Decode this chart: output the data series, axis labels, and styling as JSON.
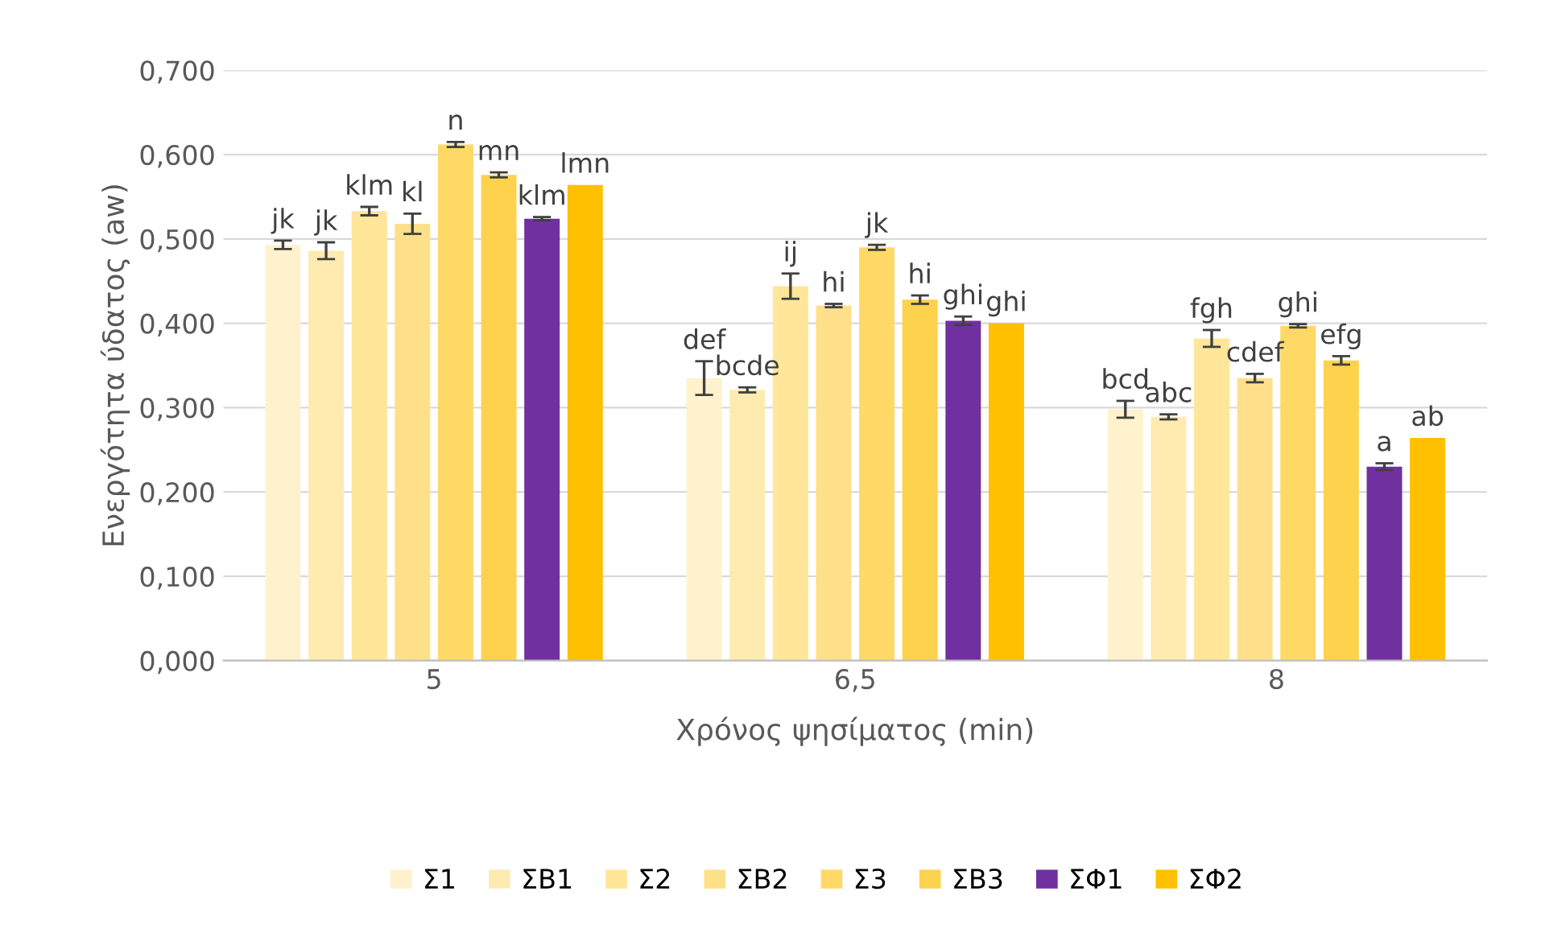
{
  "chart_data": {
    "type": "bar",
    "xlabel": "Χρόνος ψησίματος (min)",
    "ylabel": "Ενεργότητα ύδατος (aw)",
    "categories": [
      "5",
      "6,5",
      "8"
    ],
    "series": [
      {
        "name": "Σ1",
        "color": "#fff2cc",
        "values": [
          0.493,
          0.335,
          0.298
        ],
        "errors": [
          0.005,
          0.02,
          0.01
        ],
        "value_labels": [
          "jk",
          "def",
          "bcd"
        ]
      },
      {
        "name": "ΣΒ1",
        "color": "#ffebb0",
        "values": [
          0.486,
          0.321,
          0.289
        ],
        "errors": [
          0.01,
          0.003,
          0.003
        ],
        "value_labels": [
          "jk",
          "bcde",
          "abc"
        ]
      },
      {
        "name": "Σ2",
        "color": "#ffe699",
        "values": [
          0.533,
          0.444,
          0.382
        ],
        "errors": [
          0.005,
          0.015,
          0.01
        ],
        "value_labels": [
          "klm",
          "ij",
          "fgh"
        ]
      },
      {
        "name": "ΣΒ2",
        "color": "#ffe08a",
        "values": [
          0.518,
          0.421,
          0.335
        ],
        "errors": [
          0.012,
          0.002,
          0.005
        ],
        "value_labels": [
          "kl",
          "hi",
          "cdef"
        ]
      },
      {
        "name": "Σ3",
        "color": "#ffd966",
        "values": [
          0.612,
          0.49,
          0.397
        ],
        "errors": [
          0.003,
          0.003,
          0.002
        ],
        "value_labels": [
          "n",
          "jk",
          "ghi"
        ]
      },
      {
        "name": "ΣΒ3",
        "color": "#ffd24d",
        "values": [
          0.576,
          0.428,
          0.356
        ],
        "errors": [
          0.003,
          0.005,
          0.005
        ],
        "value_labels": [
          "mn",
          "hi",
          "efg"
        ]
      },
      {
        "name": "ΣΦ1",
        "color": "#7030a0",
        "values": [
          0.524,
          0.403,
          0.23
        ],
        "errors": [
          0.002,
          0.005,
          0.004
        ],
        "value_labels": [
          "klm",
          "ghi",
          "a"
        ]
      },
      {
        "name": "ΣΦ2",
        "color": "#ffc000",
        "values": [
          0.564,
          0.4,
          0.264
        ],
        "value_labels": [
          "lmn",
          "ghi",
          "ab"
        ]
      }
    ],
    "ylim": [
      0,
      0.7
    ],
    "yticks": [
      {
        "value": 0,
        "label": "0,000"
      },
      {
        "value": 0.1,
        "label": "0,100"
      },
      {
        "value": 0.2,
        "label": "0,200"
      },
      {
        "value": 0.3,
        "label": "0,300"
      },
      {
        "value": 0.4,
        "label": "0,400"
      },
      {
        "value": 0.5,
        "label": "0,500"
      },
      {
        "value": 0.6,
        "label": "0,600"
      },
      {
        "value": 0.7,
        "label": "0,700"
      }
    ],
    "grid": "y",
    "legend": "bottom"
  }
}
